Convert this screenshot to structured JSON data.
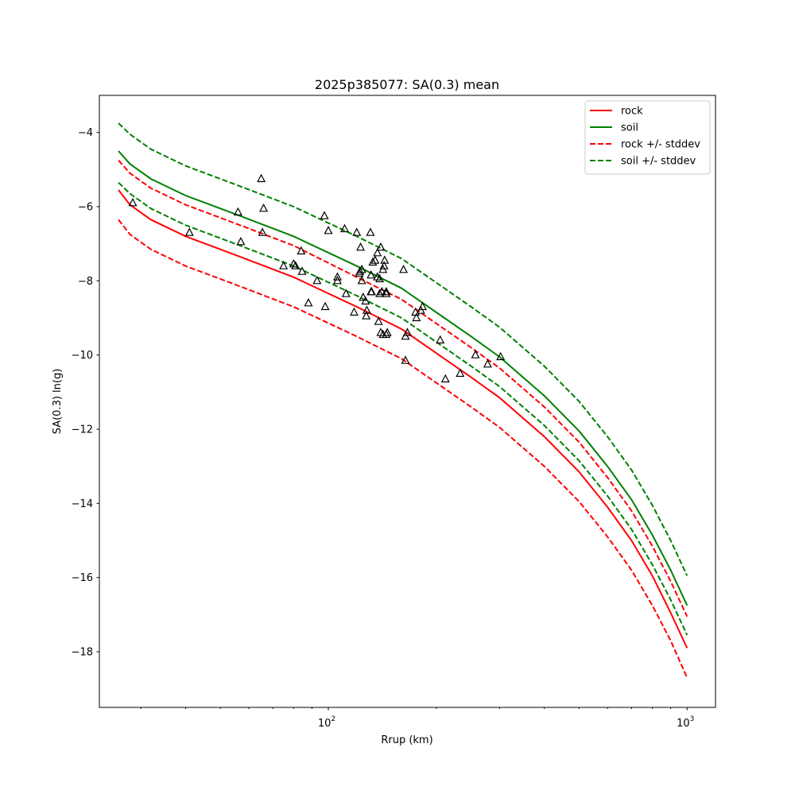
{
  "chart_data": {
    "type": "scatter",
    "title": "2025p385077: SA(0.3) mean",
    "xlabel": "Rrup (km)",
    "ylabel": "SA(0.3) ln(g)",
    "x_scale": "log",
    "xlim": [
      23,
      1200
    ],
    "ylim": [
      -19.5,
      -3
    ],
    "x_ticks": [
      {
        "value": 100,
        "base": "10",
        "exp": "2"
      },
      {
        "value": 1000,
        "base": "10",
        "exp": "3"
      }
    ],
    "y_ticks": [
      {
        "value": -4,
        "label": "−4"
      },
      {
        "value": -6,
        "label": "−6"
      },
      {
        "value": -8,
        "label": "−8"
      },
      {
        "value": -10,
        "label": "−10"
      },
      {
        "value": -12,
        "label": "−12"
      },
      {
        "value": -14,
        "label": "−14"
      },
      {
        "value": -16,
        "label": "−16"
      },
      {
        "value": -18,
        "label": "−18"
      }
    ],
    "legend_position": "top-right",
    "series": [
      {
        "name": "rock",
        "color": "#ff0000",
        "dash": "solid",
        "x": [
          26,
          28,
          32,
          40,
          55,
          80,
          120,
          160,
          200,
          250,
          300,
          400,
          500,
          600,
          700,
          800,
          900,
          1000
        ],
        "y": [
          -5.55,
          -5.95,
          -6.35,
          -6.8,
          -7.3,
          -7.9,
          -8.7,
          -9.3,
          -9.95,
          -10.6,
          -11.15,
          -12.2,
          -13.15,
          -14.1,
          -15.0,
          -15.95,
          -16.95,
          -17.9
        ]
      },
      {
        "name": "soil",
        "color": "#008000",
        "dash": "solid",
        "x": [
          26,
          28,
          32,
          40,
          55,
          80,
          120,
          160,
          200,
          250,
          300,
          400,
          500,
          600,
          700,
          800,
          900,
          1000
        ],
        "y": [
          -4.5,
          -4.85,
          -5.25,
          -5.7,
          -6.2,
          -6.8,
          -7.6,
          -8.2,
          -8.85,
          -9.5,
          -10.05,
          -11.1,
          -12.05,
          -13.0,
          -13.9,
          -14.85,
          -15.8,
          -16.75
        ]
      },
      {
        "name": "rock +/- stddev",
        "color": "#ff0000",
        "dash": "dashed",
        "x": [
          26,
          28,
          32,
          40,
          55,
          80,
          120,
          160,
          200,
          250,
          300,
          400,
          500,
          600,
          700,
          800,
          900,
          1000
        ],
        "y": [
          -4.75,
          -5.1,
          -5.5,
          -5.95,
          -6.45,
          -7.05,
          -7.9,
          -8.5,
          -9.15,
          -9.8,
          -10.35,
          -11.4,
          -12.35,
          -13.3,
          -14.2,
          -15.15,
          -16.1,
          -17.05
        ]
      },
      {
        "name": "",
        "color": "#ff0000",
        "dash": "dashed",
        "x": [
          26,
          28,
          32,
          40,
          55,
          80,
          120,
          160,
          200,
          250,
          300,
          400,
          500,
          600,
          700,
          800,
          900,
          1000
        ],
        "y": [
          -6.35,
          -6.75,
          -7.15,
          -7.6,
          -8.1,
          -8.7,
          -9.5,
          -10.1,
          -10.75,
          -11.4,
          -11.95,
          -13.0,
          -13.95,
          -14.9,
          -15.8,
          -16.75,
          -17.7,
          -18.7
        ]
      },
      {
        "name": "soil +/- stddev",
        "color": "#008000",
        "dash": "dashed",
        "x": [
          26,
          28,
          32,
          40,
          55,
          80,
          120,
          160,
          200,
          250,
          300,
          400,
          500,
          600,
          700,
          800,
          900,
          1000
        ],
        "y": [
          -3.75,
          -4.05,
          -4.45,
          -4.9,
          -5.4,
          -6.0,
          -6.8,
          -7.4,
          -8.05,
          -8.7,
          -9.25,
          -10.3,
          -11.25,
          -12.2,
          -13.1,
          -14.05,
          -15.0,
          -15.95
        ]
      },
      {
        "name": "",
        "color": "#008000",
        "dash": "dashed",
        "x": [
          26,
          28,
          32,
          40,
          55,
          80,
          120,
          160,
          200,
          250,
          300,
          400,
          500,
          600,
          700,
          800,
          900,
          1000
        ],
        "y": [
          -5.35,
          -5.65,
          -6.05,
          -6.5,
          -7.0,
          -7.6,
          -8.4,
          -9.0,
          -9.65,
          -10.3,
          -10.85,
          -11.9,
          -12.85,
          -13.8,
          -14.7,
          -15.65,
          -16.6,
          -17.55
        ]
      }
    ],
    "observations": {
      "marker": "triangle-open",
      "color": "#000000",
      "x": [
        28.5,
        41,
        56,
        57,
        65,
        65.5,
        66,
        75,
        80,
        81,
        84,
        84.5,
        88,
        93,
        97.5,
        98,
        100,
        106,
        106,
        111,
        112,
        118,
        120,
        122,
        122.5,
        123,
        124,
        124,
        125,
        127,
        127.5,
        128,
        131,
        131.5,
        131.5,
        132,
        133,
        135,
        137,
        137,
        138,
        139,
        139,
        140,
        140,
        141,
        142,
        142,
        143,
        143.5,
        145,
        145,
        145,
        146,
        162,
        164,
        166,
        164,
        175,
        176,
        181,
        183,
        205,
        212,
        233,
        257,
        278,
        302
      ],
      "y": [
        -5.9,
        -6.7,
        -6.15,
        -6.95,
        -5.25,
        -6.7,
        -6.05,
        -7.6,
        -7.55,
        -7.6,
        -7.2,
        -7.75,
        -8.6,
        -8.0,
        -6.25,
        -8.7,
        -6.65,
        -7.9,
        -8.0,
        -6.6,
        -8.35,
        -8.85,
        -6.7,
        -7.8,
        -7.75,
        -7.1,
        -7.7,
        -8.0,
        -8.45,
        -8.55,
        -8.95,
        -8.8,
        -6.7,
        -7.85,
        -8.3,
        -8.3,
        -7.5,
        -7.45,
        -7.25,
        -7.9,
        -9.1,
        -7.95,
        -8.35,
        -7.1,
        -9.4,
        -8.3,
        -7.7,
        -9.45,
        -7.6,
        -7.45,
        -9.45,
        -8.3,
        -8.35,
        -9.4,
        -7.7,
        -9.5,
        -9.4,
        -10.15,
        -8.85,
        -9.0,
        -8.8,
        -8.7,
        -9.6,
        -10.65,
        -10.5,
        -10.0,
        -10.25,
        -10.05
      ]
    }
  }
}
